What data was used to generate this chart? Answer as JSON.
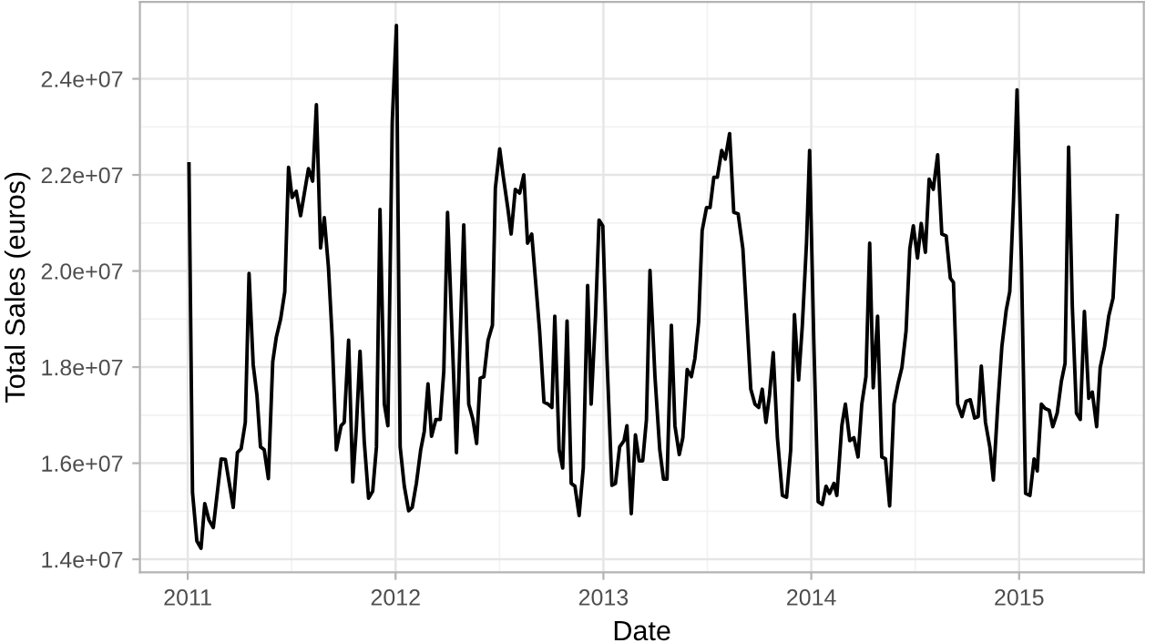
{
  "chart_data": {
    "type": "line",
    "xlabel": "Date",
    "ylabel": "Total Sales (euros)",
    "xlim": [
      2010.77,
      2015.6
    ],
    "ylim": [
      13730000,
      25600000
    ],
    "xticks": [
      2011,
      2012,
      2013,
      2014,
      2015
    ],
    "yticks": [
      {
        "value": 14000000,
        "label": "1.4e+07"
      },
      {
        "value": 16000000,
        "label": "1.6e+07"
      },
      {
        "value": 18000000,
        "label": "1.8e+07"
      },
      {
        "value": 20000000,
        "label": "2.0e+07"
      },
      {
        "value": 22000000,
        "label": "2.2e+07"
      },
      {
        "value": 24000000,
        "label": "2.4e+07"
      }
    ],
    "grid": true,
    "marker": "none",
    "line_style": "solid",
    "series": [
      {
        "color": "#000000",
        "x": [
          2011.006,
          2011.023,
          2011.044,
          2011.064,
          2011.082,
          2011.102,
          2011.123,
          2011.161,
          2011.181,
          2011.219,
          2011.239,
          2011.257,
          2011.277,
          2011.295,
          2011.315,
          2011.333,
          2011.35,
          2011.368,
          2011.388,
          2011.409,
          2011.426,
          2011.447,
          2011.467,
          2011.485,
          2011.502,
          2011.522,
          2011.543,
          2011.56,
          2011.581,
          2011.601,
          2011.619,
          2011.639,
          2011.657,
          2011.677,
          2011.695,
          2011.715,
          2011.738,
          2011.753,
          2011.774,
          2011.794,
          2011.811,
          2011.829,
          2011.849,
          2011.87,
          2011.89,
          2011.908,
          2011.925,
          2011.946,
          2011.963,
          2011.984,
          2012.004,
          2012.022,
          2012.042,
          2012.063,
          2012.08,
          2012.1,
          2012.121,
          2012.138,
          2012.156,
          2012.173,
          2012.194,
          2012.215,
          2012.232,
          2012.25,
          2012.293,
          2012.328,
          2012.352,
          2012.372,
          2012.39,
          2012.407,
          2012.425,
          2012.445,
          2012.466,
          2012.48,
          2012.501,
          2012.518,
          2012.539,
          2012.556,
          2012.576,
          2012.597,
          2012.617,
          2012.635,
          2012.655,
          2012.673,
          2012.693,
          2012.714,
          2012.734,
          2012.752,
          2012.766,
          2012.787,
          2012.804,
          2012.825,
          2012.845,
          2012.863,
          2012.883,
          2012.903,
          2012.924,
          2012.941,
          2012.962,
          2012.979,
          2012.997,
          2013.017,
          2013.041,
          2013.058,
          2013.078,
          2013.099,
          2013.113,
          2013.134,
          2013.154,
          2013.172,
          2013.189,
          2013.207,
          2013.224,
          2013.248,
          2013.271,
          2013.289,
          2013.306,
          2013.327,
          2013.344,
          2013.365,
          2013.382,
          2013.403,
          2013.423,
          2013.44,
          2013.458,
          2013.475,
          2013.496,
          2013.513,
          2013.531,
          2013.548,
          2013.569,
          2013.586,
          2013.607,
          2013.627,
          2013.648,
          2013.671,
          2013.691,
          2013.709,
          2013.729,
          2013.747,
          2013.764,
          2013.782,
          2013.799,
          2013.817,
          2013.837,
          2013.861,
          2013.881,
          2013.901,
          2013.919,
          2013.939,
          2013.957,
          2013.977,
          2013.992,
          2014.012,
          2014.033,
          2014.053,
          2014.071,
          2014.088,
          2014.109,
          2014.123,
          2014.147,
          2014.164,
          2014.185,
          2014.205,
          2014.225,
          2014.243,
          2014.263,
          2014.281,
          2014.298,
          2014.319,
          2014.339,
          2014.357,
          2014.377,
          2014.398,
          2014.418,
          2014.436,
          2014.456,
          2014.474,
          2014.491,
          2014.511,
          2014.529,
          2014.549,
          2014.567,
          2014.587,
          2014.608,
          2014.628,
          2014.649,
          2014.669,
          2014.684,
          2014.704,
          2014.725,
          2014.745,
          2014.765,
          2014.786,
          2014.803,
          2014.818,
          2014.838,
          2014.859,
          2014.876,
          2014.897,
          2014.917,
          2014.938,
          2014.955,
          2014.973,
          2014.99,
          2015.011,
          2015.031,
          2015.052,
          2015.072,
          2015.087,
          2015.107,
          2015.125,
          2015.145,
          2015.162,
          2015.183,
          2015.203,
          2015.221,
          2015.238,
          2015.256,
          2015.276,
          2015.294,
          2015.314,
          2015.335,
          2015.352,
          2015.373,
          2015.39,
          2015.411,
          2015.431,
          2015.452,
          2015.472
        ],
        "values": [
          22230000,
          15390000,
          14380000,
          14230000,
          15160000,
          14820000,
          14660000,
          16090000,
          16080000,
          15080000,
          16220000,
          16300000,
          16850000,
          19950000,
          18050000,
          17420000,
          16340000,
          16280000,
          15680000,
          18110000,
          18620000,
          19000000,
          19570000,
          22160000,
          21530000,
          21660000,
          21150000,
          21590000,
          22130000,
          21870000,
          23460000,
          20480000,
          21110000,
          20080000,
          18620000,
          16280000,
          16780000,
          16850000,
          18560000,
          15610000,
          16720000,
          18330000,
          16470000,
          15270000,
          15420000,
          16340000,
          21280000,
          17230000,
          16780000,
          23110000,
          25110000,
          16340000,
          15520000,
          15010000,
          15080000,
          15580000,
          16280000,
          16660000,
          17650000,
          16560000,
          16910000,
          16910000,
          17920000,
          21220000,
          16220000,
          20960000,
          17230000,
          16910000,
          16410000,
          17770000,
          17800000,
          18560000,
          18870000,
          21720000,
          22540000,
          21970000,
          21340000,
          20770000,
          21700000,
          21620000,
          22000000,
          20580000,
          20770000,
          19820000,
          18750000,
          17270000,
          17230000,
          17160000,
          19060000,
          16280000,
          15900000,
          18960000,
          15580000,
          15520000,
          14910000,
          15900000,
          19700000,
          17230000,
          19060000,
          21060000,
          20940000,
          18180000,
          15540000,
          15580000,
          16340000,
          16470000,
          16780000,
          14950000,
          16590000,
          16050000,
          16050000,
          16910000,
          20010000,
          17800000,
          16280000,
          15670000,
          15670000,
          18870000,
          16780000,
          16180000,
          16530000,
          17950000,
          17800000,
          18180000,
          18940000,
          20840000,
          21320000,
          21320000,
          21950000,
          21950000,
          22510000,
          22330000,
          22860000,
          21220000,
          21190000,
          20460000,
          18940000,
          17540000,
          17230000,
          17160000,
          17540000,
          16850000,
          17420000,
          18300000,
          16530000,
          15330000,
          15290000,
          16280000,
          19090000,
          17730000,
          18870000,
          20580000,
          22510000,
          18560000,
          15200000,
          15140000,
          15520000,
          15370000,
          15580000,
          15330000,
          16780000,
          17230000,
          16470000,
          16530000,
          16130000,
          17230000,
          17800000,
          20580000,
          17570000,
          19060000,
          16130000,
          16090000,
          15110000,
          17230000,
          17670000,
          17990000,
          18750000,
          20460000,
          20940000,
          20270000,
          20990000,
          20390000,
          21910000,
          21700000,
          22420000,
          20770000,
          20730000,
          19850000,
          19760000,
          17230000,
          16970000,
          17290000,
          17320000,
          16940000,
          16970000,
          18020000,
          16850000,
          16340000,
          15650000,
          17190000,
          18430000,
          19190000,
          19570000,
          21470000,
          23770000,
          20200000,
          15370000,
          15330000,
          16090000,
          15840000,
          17230000,
          17140000,
          17100000,
          16760000,
          17040000,
          17700000,
          18080000,
          22580000,
          19250000,
          17040000,
          16910000,
          19160000,
          17350000,
          17480000,
          16760000,
          17990000,
          18430000,
          19060000,
          19440000,
          21150000
        ]
      }
    ]
  }
}
